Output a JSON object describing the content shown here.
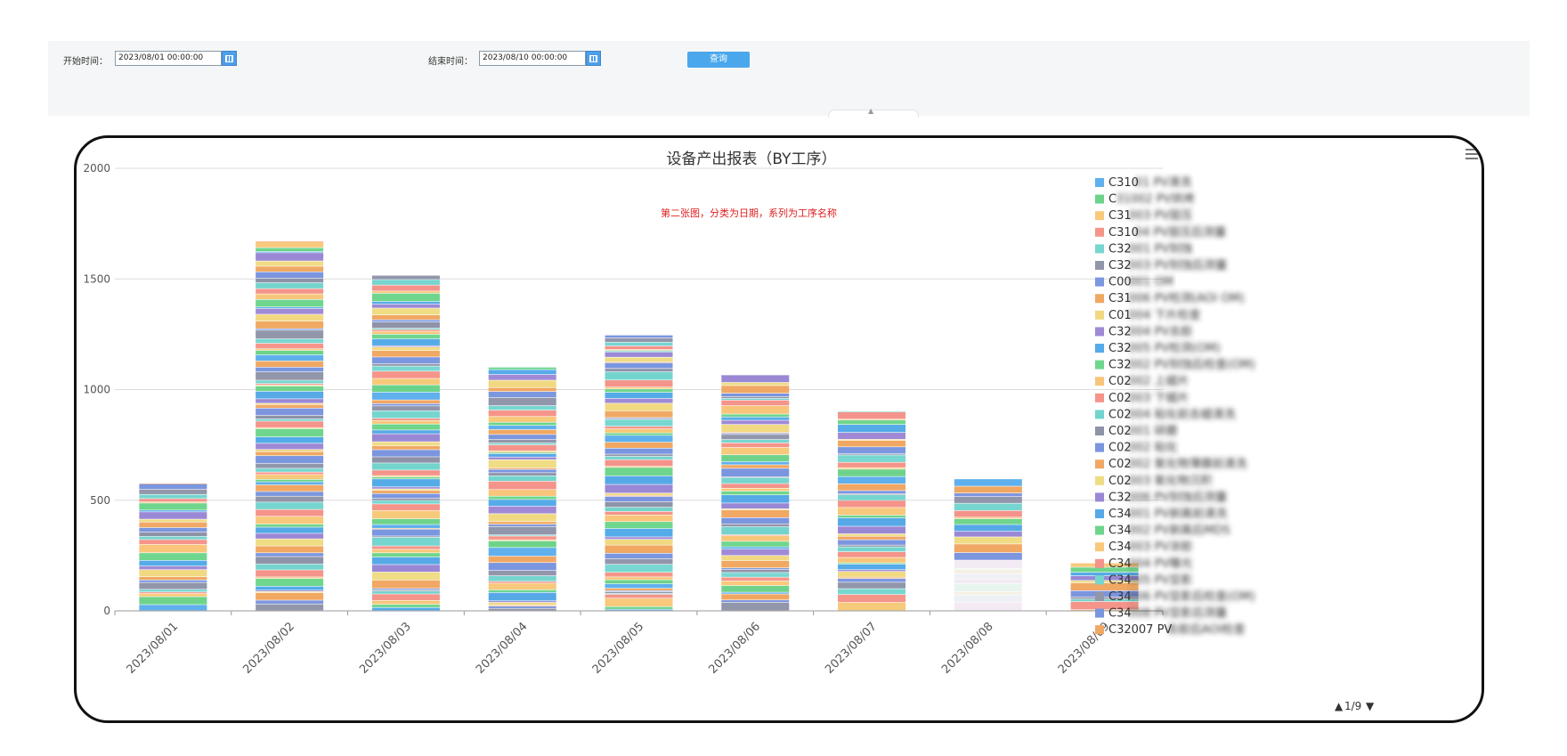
{
  "filters": {
    "start_label": "开始时间：",
    "start_value": "2023/08/01 00:00:00",
    "end_label": "结束时间：",
    "end_value": "2023/08/10 00:00:00",
    "query_label": "查询",
    "calendar_icon": "calendar-icon",
    "collapse_icon": "chevron-up-icon"
  },
  "chart_data": {
    "type": "bar",
    "stacked": true,
    "title": "设备产出报表（BY工序）",
    "annotation": "第二张图，分类为日期，系列为工序名称",
    "categories": [
      "2023/08/01",
      "2023/08/02",
      "2023/08/03",
      "2023/08/04",
      "2023/08/05",
      "2023/08/06",
      "2023/08/07",
      "2023/08/08",
      "2023/08/09"
    ],
    "totals": [
      575,
      1670,
      1515,
      1100,
      1245,
      1065,
      900,
      595,
      215
    ],
    "ylim": [
      0,
      2000
    ],
    "yticks": [
      0,
      500,
      1000,
      1500,
      2000
    ],
    "grid": true,
    "legend_position": "right",
    "legend_page": "1/9",
    "legend": [
      {
        "label": "C31001 PV清洗",
        "color": "#5fb0ec",
        "visible": "C310"
      },
      {
        "label": "C31002 PV烘烤",
        "color": "#6ed38a",
        "visible": "C"
      },
      {
        "label": "C31003 PV层压",
        "color": "#f7c97a",
        "visible": "C31"
      },
      {
        "label": "C31004 PV层压后测量",
        "color": "#f5958a",
        "visible": "C310"
      },
      {
        "label": "C32001 PV刻蚀",
        "color": "#78d7d1",
        "visible": "C32"
      },
      {
        "label": "C32003 PV刻蚀后测量",
        "color": "#9196ab",
        "visible": "C32"
      },
      {
        "label": "C00001 OM",
        "color": "#7b97e0",
        "visible": "C00"
      },
      {
        "label": "C31006 PV检测(AOI OM)",
        "color": "#f0a862",
        "visible": "C31"
      },
      {
        "label": "C01004 下片检查",
        "color": "#f1d982",
        "visible": "C01"
      },
      {
        "label": "C32004 PV去胶",
        "color": "#a08ad6",
        "visible": "C32"
      },
      {
        "label": "C32005 PV检测(OM)",
        "color": "#55abe8",
        "visible": "C32"
      },
      {
        "label": "C32002 PV刻蚀后检查(OM)",
        "color": "#6fd68e",
        "visible": "C32"
      },
      {
        "label": "C02002 上蜡片",
        "color": "#f8c57a",
        "visible": "C02"
      },
      {
        "label": "C02003 下蜡片",
        "color": "#f4948a",
        "visible": "C02"
      },
      {
        "label": "C02004 粘化前去蜡清洗",
        "color": "#73d4cd",
        "visible": "C02"
      },
      {
        "label": "C02001 研磨",
        "color": "#8f93a8",
        "visible": "C02"
      },
      {
        "label": "C02002 粘化",
        "color": "#7b95df",
        "visible": "C02"
      },
      {
        "label": "C02002 氧化物薄膜前清洗",
        "color": "#f0a864",
        "visible": "C02"
      },
      {
        "label": "C02003 氧化物沉积",
        "color": "#efdc85",
        "visible": "C02"
      },
      {
        "label": "C32006 PV刻蚀后测量",
        "color": "#9a88d5",
        "visible": "C32"
      },
      {
        "label": "C34001 PV剥离前清洗",
        "color": "#56a9e6",
        "visible": "C34"
      },
      {
        "label": "C34002 PV剥离后MDS",
        "color": "#6fd58c",
        "visible": "C34"
      },
      {
        "label": "C34003 PV涂胶",
        "color": "#f8c87c",
        "visible": "C34"
      },
      {
        "label": "C34004 PV曝光",
        "color": "#f4938a",
        "visible": "C34"
      },
      {
        "label": "C34005 PV显影",
        "color": "#76d5ce",
        "visible": "C34"
      },
      {
        "label": "C34006 PV显影后检查(OM)",
        "color": "#9296aa",
        "visible": "C34"
      },
      {
        "label": "C34008 PV显影后测量",
        "color": "#7a96df",
        "visible": "C34"
      },
      {
        "label": "C32007 PV去胶后AOI检查",
        "color": "#f0a763",
        "visible": "C32007 PV"
      }
    ],
    "menu_icon": "menu-icon"
  }
}
